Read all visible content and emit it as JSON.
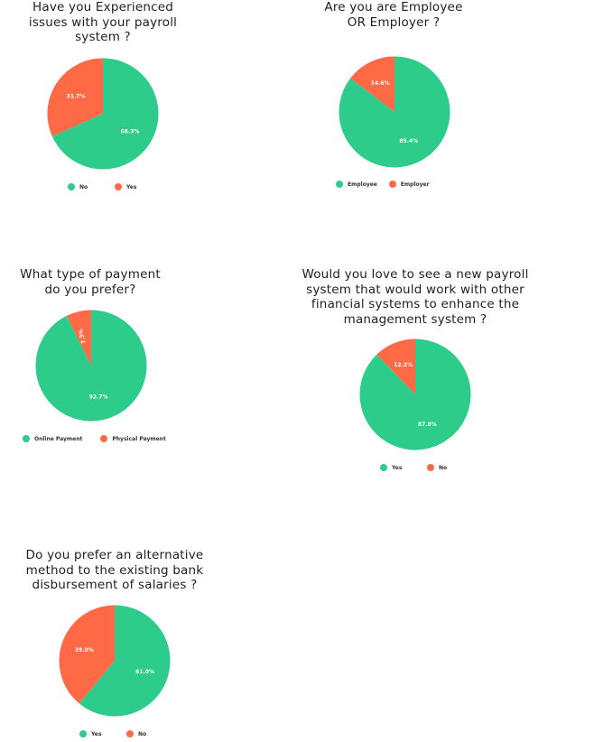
{
  "chart_data": [
    {
      "type": "pie",
      "title": "Have you Experienced\nissues with your payroll\nsystem ?",
      "slices": [
        {
          "name": "No",
          "value": 68.3,
          "label": "68.3%",
          "color": "#2ecc8a"
        },
        {
          "name": "Yes",
          "value": 31.7,
          "label": "31.7%",
          "color": "#fd6a45"
        }
      ],
      "legend": [
        "No",
        "Yes"
      ]
    },
    {
      "type": "pie",
      "title": "Are you are Employee\nOR Employer ?",
      "slices": [
        {
          "name": "Employee",
          "value": 85.4,
          "label": "85.4%",
          "color": "#2ecc8a"
        },
        {
          "name": "Employer",
          "value": 14.6,
          "label": "14.6%",
          "color": "#fd6a45"
        }
      ],
      "legend": [
        "Employee",
        "Employer"
      ]
    },
    {
      "type": "pie",
      "title": "What type of payment\ndo you prefer?",
      "slices": [
        {
          "name": "Online Payment",
          "value": 92.7,
          "label": "92.7%",
          "color": "#2ecc8a"
        },
        {
          "name": "Physical Payment",
          "value": 7.3,
          "label": "7.3%",
          "color": "#fd6a45"
        }
      ],
      "legend": [
        "Online Payment",
        "Physical Payment"
      ]
    },
    {
      "type": "pie",
      "title": "Would you love to see a new payroll\nsystem that would work with other\nfinancial systems to enhance the\nmanagement system ?",
      "slices": [
        {
          "name": "Yes",
          "value": 87.8,
          "label": "87.8%",
          "color": "#2ecc8a"
        },
        {
          "name": "No",
          "value": 12.2,
          "label": "12.2%",
          "color": "#fd6a45"
        }
      ],
      "legend": [
        "Yes",
        "No"
      ]
    },
    {
      "type": "pie",
      "title": "Do you prefer an alternative\nmethod to the existing bank\ndisbursement of salaries  ?",
      "slices": [
        {
          "name": "Yes",
          "value": 61.0,
          "label": "61.0%",
          "color": "#2ecc8a"
        },
        {
          "name": "No",
          "value": 39.0,
          "label": "39.0%",
          "color": "#fd6a45"
        }
      ],
      "legend": [
        "Yes",
        "No"
      ]
    }
  ]
}
